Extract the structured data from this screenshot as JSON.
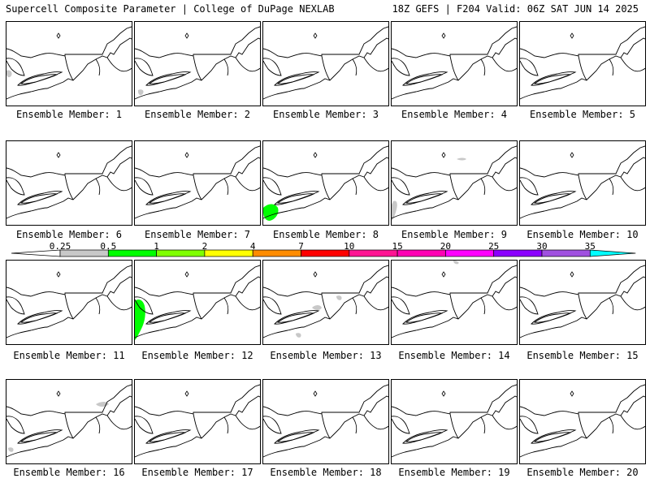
{
  "header": {
    "title_left": "Supercell Composite Parameter | College of DuPage NEXLAB",
    "title_right": "18Z GEFS | F204 Valid: 06Z SAT JUN 14 2025"
  },
  "panel_label_prefix": "Ensemble Member:",
  "members": [
    {
      "label": "Ensemble Member: 1",
      "blobs": [
        {
          "type": "gray",
          "where": "far-west-edge"
        }
      ]
    },
    {
      "label": "Ensemble Member: 2",
      "blobs": [
        {
          "type": "gray",
          "where": "lake-erie-south-small"
        }
      ]
    },
    {
      "label": "Ensemble Member: 3",
      "blobs": []
    },
    {
      "label": "Ensemble Member: 4",
      "blobs": []
    },
    {
      "label": "Ensemble Member: 5",
      "blobs": []
    },
    {
      "label": "Ensemble Member: 6",
      "blobs": []
    },
    {
      "label": "Ensemble Member: 7",
      "blobs": []
    },
    {
      "label": "Ensemble Member: 8",
      "blobs": [
        {
          "type": "green",
          "where": "southwest-corner"
        }
      ]
    },
    {
      "label": "Ensemble Member: 9",
      "blobs": [
        {
          "type": "gray",
          "where": "southwest-edge"
        },
        {
          "type": "gray",
          "where": "north-quebec-small"
        }
      ]
    },
    {
      "label": "Ensemble Member: 10",
      "blobs": []
    },
    {
      "label": "Ensemble Member: 11",
      "blobs": []
    },
    {
      "label": "Ensemble Member: 12",
      "blobs": [
        {
          "type": "green",
          "where": "west-edge-tall"
        }
      ]
    },
    {
      "label": "Ensemble Member: 13",
      "blobs": [
        {
          "type": "gray",
          "where": "central-scattered"
        }
      ]
    },
    {
      "label": "Ensemble Member: 14",
      "blobs": [
        {
          "type": "gray",
          "where": "top-edge-small"
        }
      ]
    },
    {
      "label": "Ensemble Member: 15",
      "blobs": []
    },
    {
      "label": "Ensemble Member: 16",
      "blobs": [
        {
          "type": "gray",
          "where": "ontario-north"
        },
        {
          "type": "gray",
          "where": "bottom-left-small"
        }
      ]
    },
    {
      "label": "Ensemble Member: 17",
      "blobs": []
    },
    {
      "label": "Ensemble Member: 18",
      "blobs": []
    },
    {
      "label": "Ensemble Member: 19",
      "blobs": []
    },
    {
      "label": "Ensemble Member: 20",
      "blobs": []
    }
  ],
  "colorbar": {
    "ticks": [
      "0.25",
      "0.5",
      "1",
      "2",
      "4",
      "7",
      "10",
      "15",
      "20",
      "25",
      "30",
      "35"
    ],
    "colors": [
      "#c8c8c8",
      "#00ff00",
      "#7fff00",
      "#ffff00",
      "#ff8c00",
      "#ff0000",
      "#ff1493",
      "#ff00b4",
      "#ff00ff",
      "#8b00ff",
      "#a050e0",
      "#00ffff"
    ],
    "below_color": "#ffffff"
  }
}
